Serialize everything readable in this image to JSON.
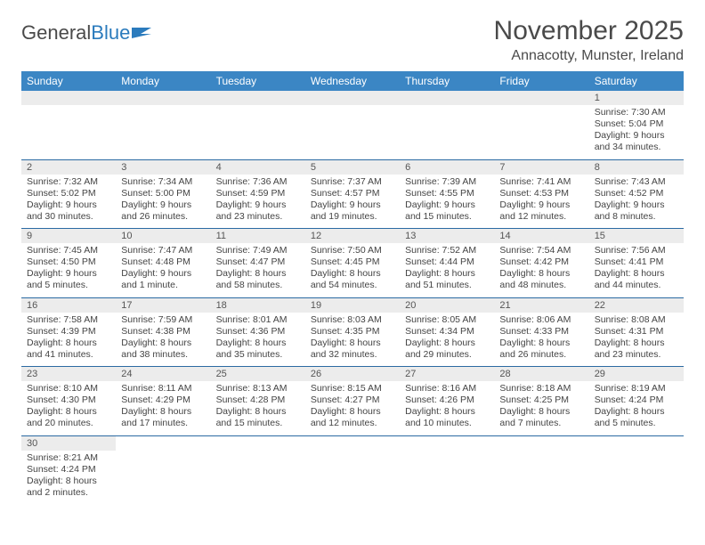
{
  "logo": {
    "text1": "General",
    "text2": "Blue"
  },
  "title": "November 2025",
  "location": "Annacotty, Munster, Ireland",
  "colors": {
    "header_bg": "#3b86c4",
    "header_text": "#ffffff",
    "row_divider": "#2b6aa3",
    "daynum_bg": "#ececec",
    "text": "#3a3a3a",
    "accent": "#2b7bbd"
  },
  "day_headers": [
    "Sunday",
    "Monday",
    "Tuesday",
    "Wednesday",
    "Thursday",
    "Friday",
    "Saturday"
  ],
  "weeks": [
    [
      {
        "blank": true
      },
      {
        "blank": true
      },
      {
        "blank": true
      },
      {
        "blank": true
      },
      {
        "blank": true
      },
      {
        "blank": true
      },
      {
        "n": "1",
        "sunrise": "Sunrise: 7:30 AM",
        "sunset": "Sunset: 5:04 PM",
        "day1": "Daylight: 9 hours",
        "day2": "and 34 minutes."
      }
    ],
    [
      {
        "n": "2",
        "sunrise": "Sunrise: 7:32 AM",
        "sunset": "Sunset: 5:02 PM",
        "day1": "Daylight: 9 hours",
        "day2": "and 30 minutes."
      },
      {
        "n": "3",
        "sunrise": "Sunrise: 7:34 AM",
        "sunset": "Sunset: 5:00 PM",
        "day1": "Daylight: 9 hours",
        "day2": "and 26 minutes."
      },
      {
        "n": "4",
        "sunrise": "Sunrise: 7:36 AM",
        "sunset": "Sunset: 4:59 PM",
        "day1": "Daylight: 9 hours",
        "day2": "and 23 minutes."
      },
      {
        "n": "5",
        "sunrise": "Sunrise: 7:37 AM",
        "sunset": "Sunset: 4:57 PM",
        "day1": "Daylight: 9 hours",
        "day2": "and 19 minutes."
      },
      {
        "n": "6",
        "sunrise": "Sunrise: 7:39 AM",
        "sunset": "Sunset: 4:55 PM",
        "day1": "Daylight: 9 hours",
        "day2": "and 15 minutes."
      },
      {
        "n": "7",
        "sunrise": "Sunrise: 7:41 AM",
        "sunset": "Sunset: 4:53 PM",
        "day1": "Daylight: 9 hours",
        "day2": "and 12 minutes."
      },
      {
        "n": "8",
        "sunrise": "Sunrise: 7:43 AM",
        "sunset": "Sunset: 4:52 PM",
        "day1": "Daylight: 9 hours",
        "day2": "and 8 minutes."
      }
    ],
    [
      {
        "n": "9",
        "sunrise": "Sunrise: 7:45 AM",
        "sunset": "Sunset: 4:50 PM",
        "day1": "Daylight: 9 hours",
        "day2": "and 5 minutes."
      },
      {
        "n": "10",
        "sunrise": "Sunrise: 7:47 AM",
        "sunset": "Sunset: 4:48 PM",
        "day1": "Daylight: 9 hours",
        "day2": "and 1 minute."
      },
      {
        "n": "11",
        "sunrise": "Sunrise: 7:49 AM",
        "sunset": "Sunset: 4:47 PM",
        "day1": "Daylight: 8 hours",
        "day2": "and 58 minutes."
      },
      {
        "n": "12",
        "sunrise": "Sunrise: 7:50 AM",
        "sunset": "Sunset: 4:45 PM",
        "day1": "Daylight: 8 hours",
        "day2": "and 54 minutes."
      },
      {
        "n": "13",
        "sunrise": "Sunrise: 7:52 AM",
        "sunset": "Sunset: 4:44 PM",
        "day1": "Daylight: 8 hours",
        "day2": "and 51 minutes."
      },
      {
        "n": "14",
        "sunrise": "Sunrise: 7:54 AM",
        "sunset": "Sunset: 4:42 PM",
        "day1": "Daylight: 8 hours",
        "day2": "and 48 minutes."
      },
      {
        "n": "15",
        "sunrise": "Sunrise: 7:56 AM",
        "sunset": "Sunset: 4:41 PM",
        "day1": "Daylight: 8 hours",
        "day2": "and 44 minutes."
      }
    ],
    [
      {
        "n": "16",
        "sunrise": "Sunrise: 7:58 AM",
        "sunset": "Sunset: 4:39 PM",
        "day1": "Daylight: 8 hours",
        "day2": "and 41 minutes."
      },
      {
        "n": "17",
        "sunrise": "Sunrise: 7:59 AM",
        "sunset": "Sunset: 4:38 PM",
        "day1": "Daylight: 8 hours",
        "day2": "and 38 minutes."
      },
      {
        "n": "18",
        "sunrise": "Sunrise: 8:01 AM",
        "sunset": "Sunset: 4:36 PM",
        "day1": "Daylight: 8 hours",
        "day2": "and 35 minutes."
      },
      {
        "n": "19",
        "sunrise": "Sunrise: 8:03 AM",
        "sunset": "Sunset: 4:35 PM",
        "day1": "Daylight: 8 hours",
        "day2": "and 32 minutes."
      },
      {
        "n": "20",
        "sunrise": "Sunrise: 8:05 AM",
        "sunset": "Sunset: 4:34 PM",
        "day1": "Daylight: 8 hours",
        "day2": "and 29 minutes."
      },
      {
        "n": "21",
        "sunrise": "Sunrise: 8:06 AM",
        "sunset": "Sunset: 4:33 PM",
        "day1": "Daylight: 8 hours",
        "day2": "and 26 minutes."
      },
      {
        "n": "22",
        "sunrise": "Sunrise: 8:08 AM",
        "sunset": "Sunset: 4:31 PM",
        "day1": "Daylight: 8 hours",
        "day2": "and 23 minutes."
      }
    ],
    [
      {
        "n": "23",
        "sunrise": "Sunrise: 8:10 AM",
        "sunset": "Sunset: 4:30 PM",
        "day1": "Daylight: 8 hours",
        "day2": "and 20 minutes."
      },
      {
        "n": "24",
        "sunrise": "Sunrise: 8:11 AM",
        "sunset": "Sunset: 4:29 PM",
        "day1": "Daylight: 8 hours",
        "day2": "and 17 minutes."
      },
      {
        "n": "25",
        "sunrise": "Sunrise: 8:13 AM",
        "sunset": "Sunset: 4:28 PM",
        "day1": "Daylight: 8 hours",
        "day2": "and 15 minutes."
      },
      {
        "n": "26",
        "sunrise": "Sunrise: 8:15 AM",
        "sunset": "Sunset: 4:27 PM",
        "day1": "Daylight: 8 hours",
        "day2": "and 12 minutes."
      },
      {
        "n": "27",
        "sunrise": "Sunrise: 8:16 AM",
        "sunset": "Sunset: 4:26 PM",
        "day1": "Daylight: 8 hours",
        "day2": "and 10 minutes."
      },
      {
        "n": "28",
        "sunrise": "Sunrise: 8:18 AM",
        "sunset": "Sunset: 4:25 PM",
        "day1": "Daylight: 8 hours",
        "day2": "and 7 minutes."
      },
      {
        "n": "29",
        "sunrise": "Sunrise: 8:19 AM",
        "sunset": "Sunset: 4:24 PM",
        "day1": "Daylight: 8 hours",
        "day2": "and 5 minutes."
      }
    ],
    [
      {
        "n": "30",
        "sunrise": "Sunrise: 8:21 AM",
        "sunset": "Sunset: 4:24 PM",
        "day1": "Daylight: 8 hours",
        "day2": "and 2 minutes."
      },
      {
        "blank": true
      },
      {
        "blank": true
      },
      {
        "blank": true
      },
      {
        "blank": true
      },
      {
        "blank": true
      },
      {
        "blank": true
      }
    ]
  ]
}
